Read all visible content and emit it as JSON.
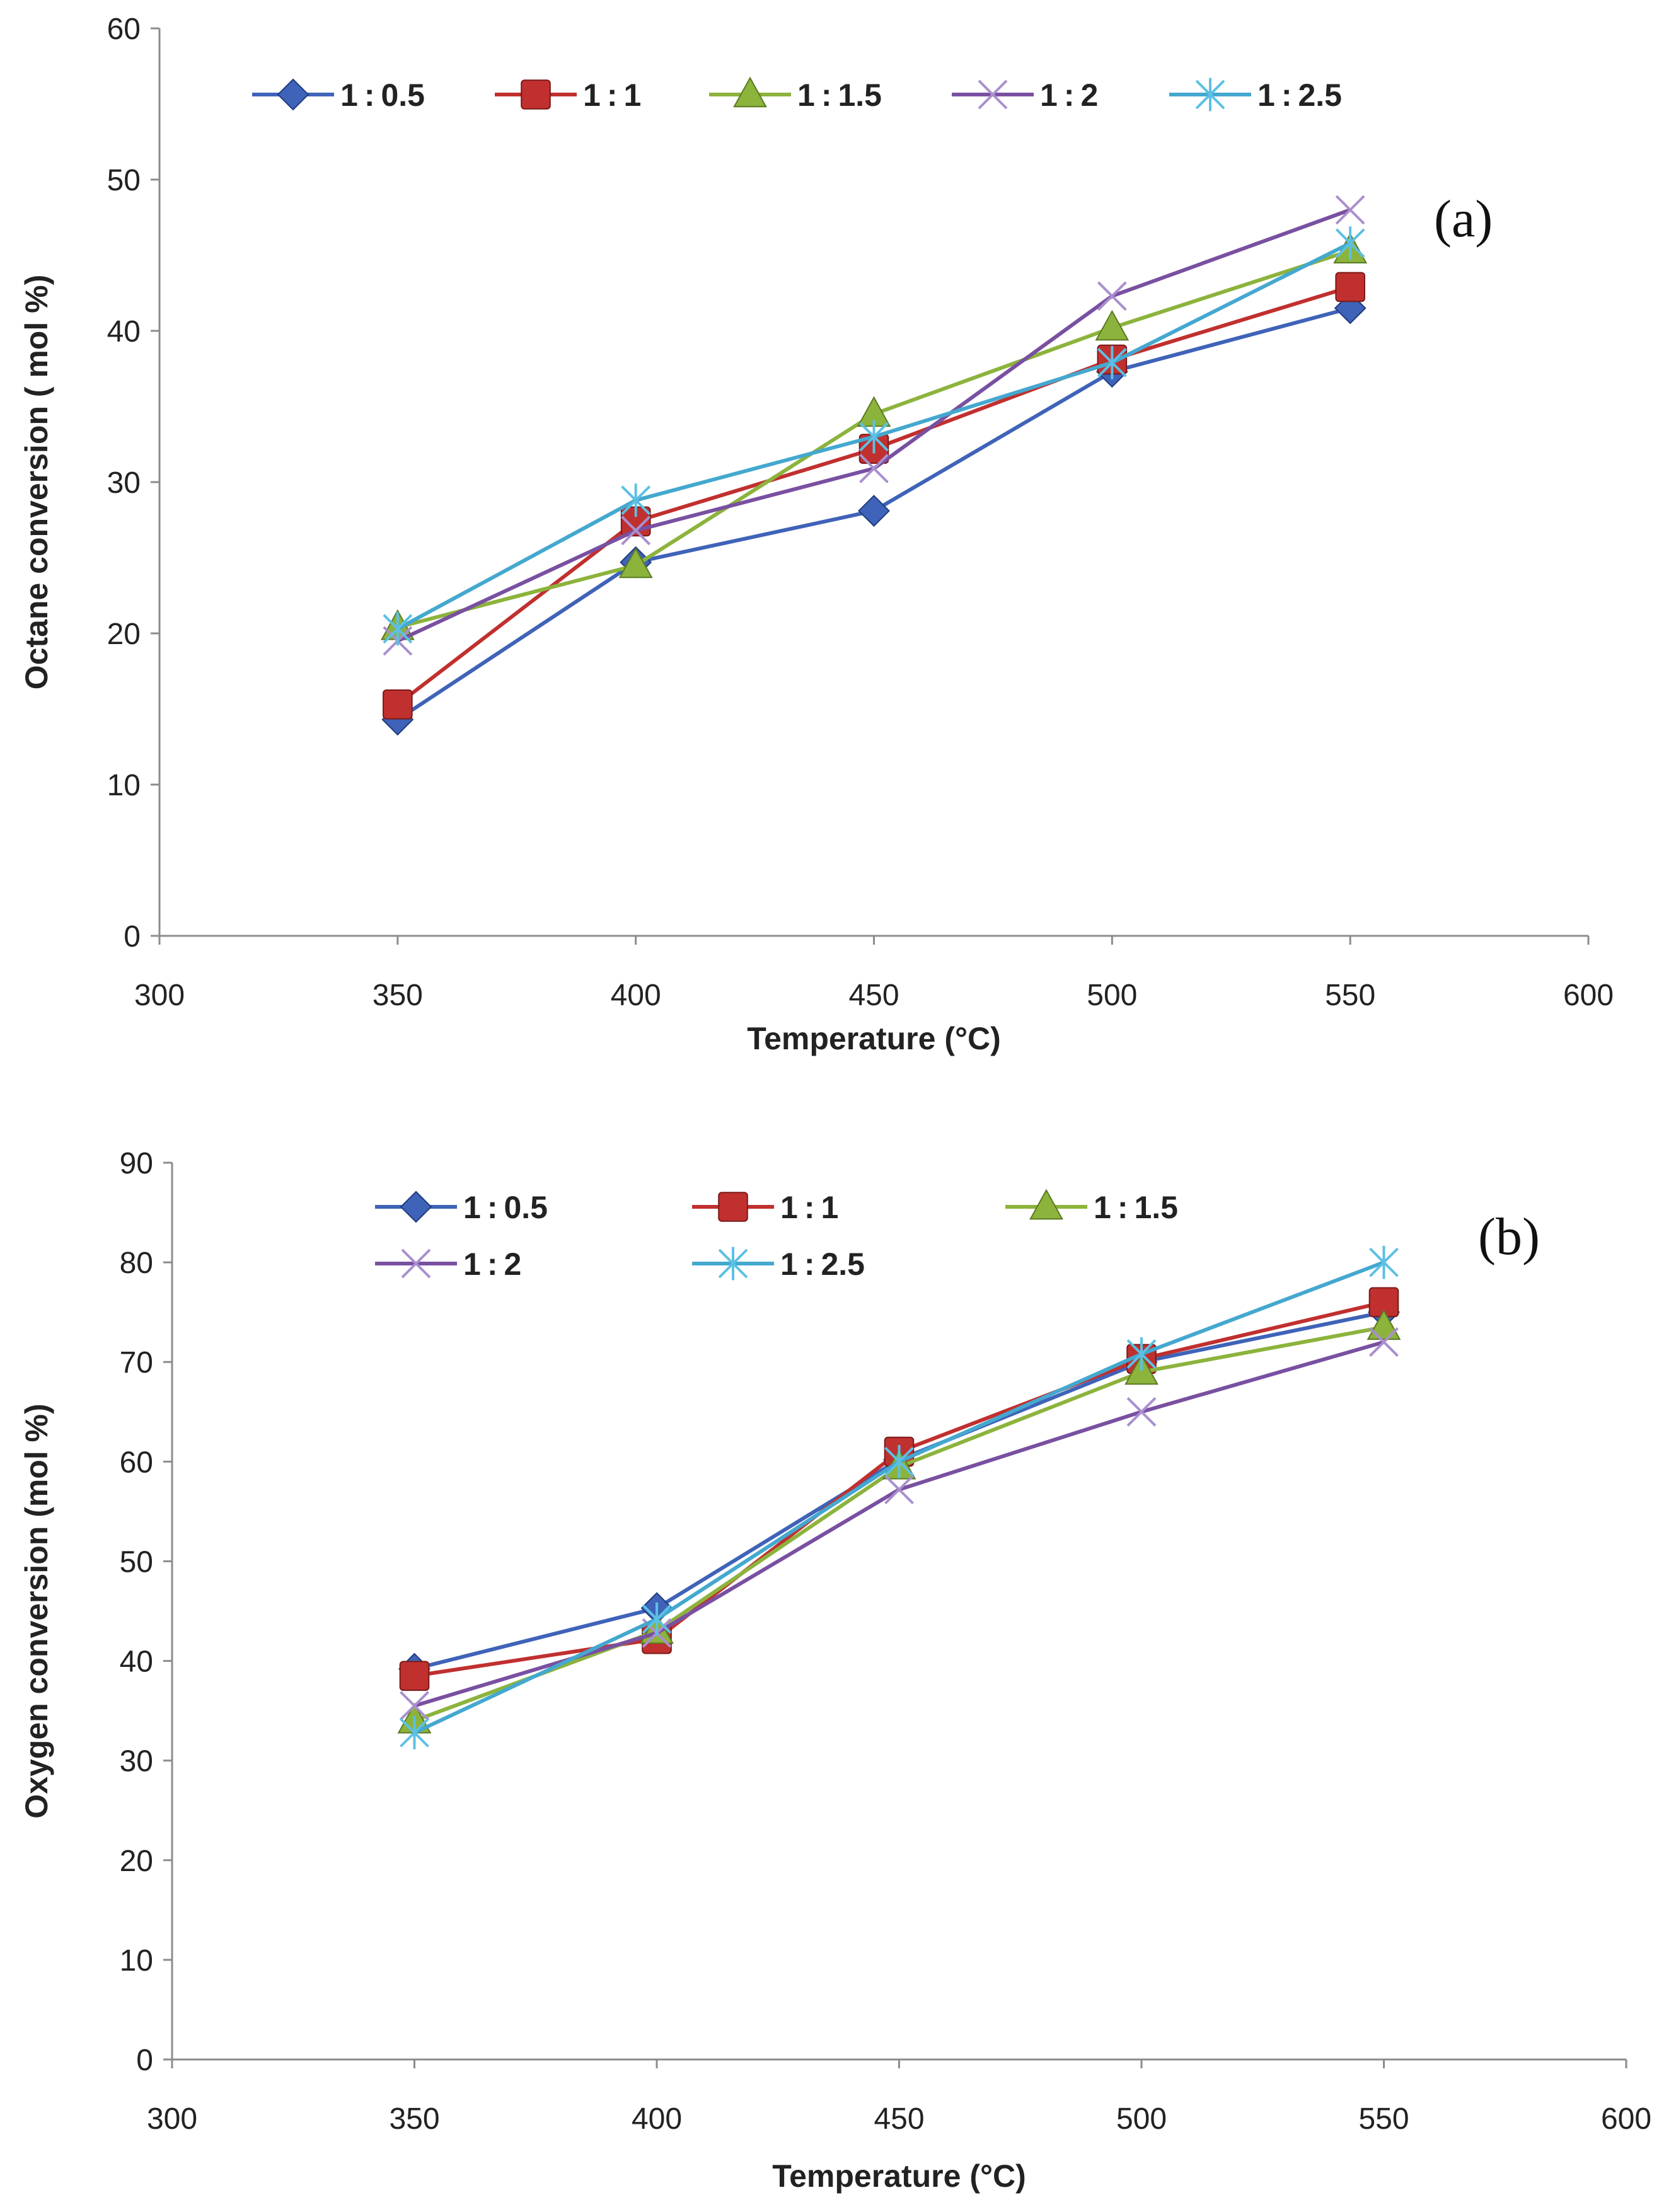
{
  "chart_data": [
    {
      "type": "line",
      "panel_label": "(a)",
      "xlabel": "Temperature (°C)",
      "ylabel": "Octane conversion  ( mol %)",
      "xlim": [
        300,
        600
      ],
      "ylim": [
        0,
        60
      ],
      "xticks": [
        "300",
        "350",
        "400",
        "450",
        "500",
        "550",
        "600"
      ],
      "yticks": [
        "0",
        "10",
        "20",
        "30",
        "40",
        "50",
        "60"
      ],
      "x": [
        350,
        400,
        450,
        500,
        550
      ],
      "legend_position": "top",
      "series": [
        {
          "name": "1:0.5",
          "color": "#3f63b8",
          "marker": "diamond",
          "values": [
            14.3,
            24.7,
            28.1,
            37.3,
            41.5
          ]
        },
        {
          "name": "1:1",
          "color": "#c0302f",
          "marker": "square",
          "values": [
            15.3,
            27.4,
            32.2,
            38.1,
            42.9
          ]
        },
        {
          "name": "1:1.5",
          "color": "#8cb33c",
          "marker": "triangle",
          "values": [
            20.4,
            24.5,
            34.5,
            40.2,
            45.3
          ]
        },
        {
          "name": "1:2",
          "color": "#7950a1",
          "marker": "x",
          "values": [
            19.5,
            26.8,
            30.9,
            42.3,
            48.0
          ]
        },
        {
          "name": "1:2.5",
          "color": "#44a8cf",
          "marker": "asterisk",
          "values": [
            20.3,
            28.8,
            33.0,
            37.9,
            45.8
          ]
        }
      ]
    },
    {
      "type": "line",
      "panel_label": "(b)",
      "xlabel": "Temperature (°C)",
      "ylabel": "Oxygen conversion (mol %)",
      "xlim": [
        300,
        600
      ],
      "ylim": [
        0,
        90
      ],
      "xticks": [
        "300",
        "350",
        "400",
        "450",
        "500",
        "550",
        "600"
      ],
      "yticks": [
        "0",
        "10",
        "20",
        "30",
        "40",
        "50",
        "60",
        "70",
        "80",
        "90"
      ],
      "x": [
        350,
        400,
        450,
        500,
        550
      ],
      "legend_position": "top",
      "series": [
        {
          "name": "1:0.5",
          "color": "#3f63b8",
          "marker": "diamond",
          "values": [
            39.2,
            45.3,
            60.2,
            70.0,
            75.0
          ]
        },
        {
          "name": "1:1",
          "color": "#c0302f",
          "marker": "square",
          "values": [
            38.5,
            42.2,
            61.0,
            70.3,
            76.0
          ]
        },
        {
          "name": "1:1.5",
          "color": "#8cb33c",
          "marker": "triangle",
          "values": [
            34.0,
            43.0,
            59.5,
            69.0,
            73.5
          ]
        },
        {
          "name": "1:2",
          "color": "#7950a1",
          "marker": "x",
          "values": [
            35.5,
            42.8,
            57.2,
            65.0,
            72.0
          ]
        },
        {
          "name": "1:2.5",
          "color": "#44a8cf",
          "marker": "asterisk",
          "values": [
            32.8,
            44.2,
            60.0,
            70.8,
            80.0
          ]
        }
      ]
    }
  ]
}
